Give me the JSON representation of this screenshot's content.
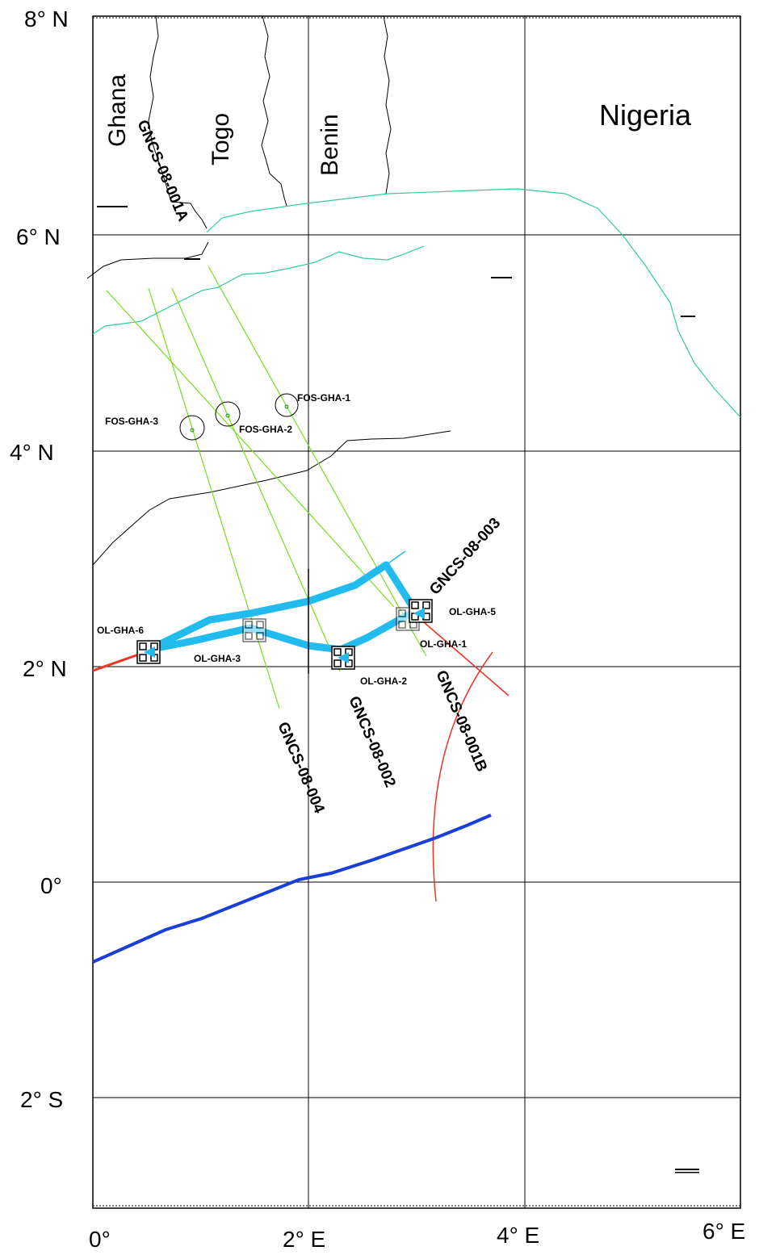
{
  "axes": {
    "lat_labels": [
      "8° N",
      "6° N",
      "4° N",
      "2° N",
      "0°",
      "2° S"
    ],
    "lon_labels": [
      "0°",
      "2° E",
      "4° E",
      "6° E"
    ]
  },
  "countries": {
    "ghana": "Ghana",
    "togo": "Togo",
    "benin": "Benin",
    "nigeria": "Nigeria"
  },
  "survey_lines": {
    "l001a": "GNCS-08-001A",
    "l001b": "GNCS-08-001B",
    "l002": "GNCS-08-002",
    "l003": "GNCS-08-003",
    "l004": "GNCS-08-004"
  },
  "fos_sites": {
    "fos1": "FOS-GHA-1",
    "fos2": "FOS-GHA-2",
    "fos3": "FOS-GHA-3"
  },
  "ol_sites": {
    "ol1": "OL-GHA-1",
    "ol2": "OL-GHA-2",
    "ol3": "OL-GHA-3",
    "ol5": "OL-GHA-5",
    "ol6": "OL-GHA-6"
  },
  "colors": {
    "border": "#000000",
    "coast": "#33cc99",
    "survey_track": "#77dd22",
    "route_highlight": "#22bbee",
    "red_route": "#ee3322",
    "blue_route": "#1a3fd6"
  }
}
